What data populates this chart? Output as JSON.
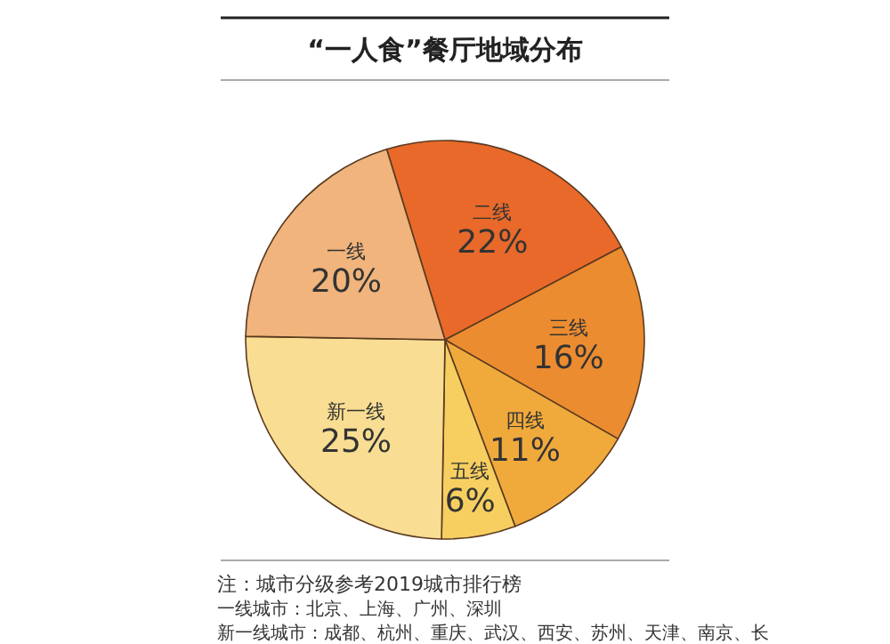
{
  "chart_data": {
    "type": "pie",
    "title": "“一人食”餐厅地域分布",
    "categories": [
      "二线",
      "三线",
      "四线",
      "五线",
      "新一线",
      "一线"
    ],
    "values": [
      22,
      16,
      11,
      6,
      25,
      20
    ],
    "colors": [
      "#e8692a",
      "#ec8c30",
      "#f0aa3c",
      "#f6cf60",
      "#f8dd92",
      "#f0b47c"
    ],
    "value_labels": [
      "22%",
      "16%",
      "11%",
      "6%",
      "25%",
      "20%"
    ],
    "annotations": [
      "注：城市分级参考2019城市排行榜",
      "一线城市：北京、上海、广州、深圳",
      "新一线城市：成都、杭州、重庆、武汉、西安、苏州、天津、南京、长"
    ]
  }
}
